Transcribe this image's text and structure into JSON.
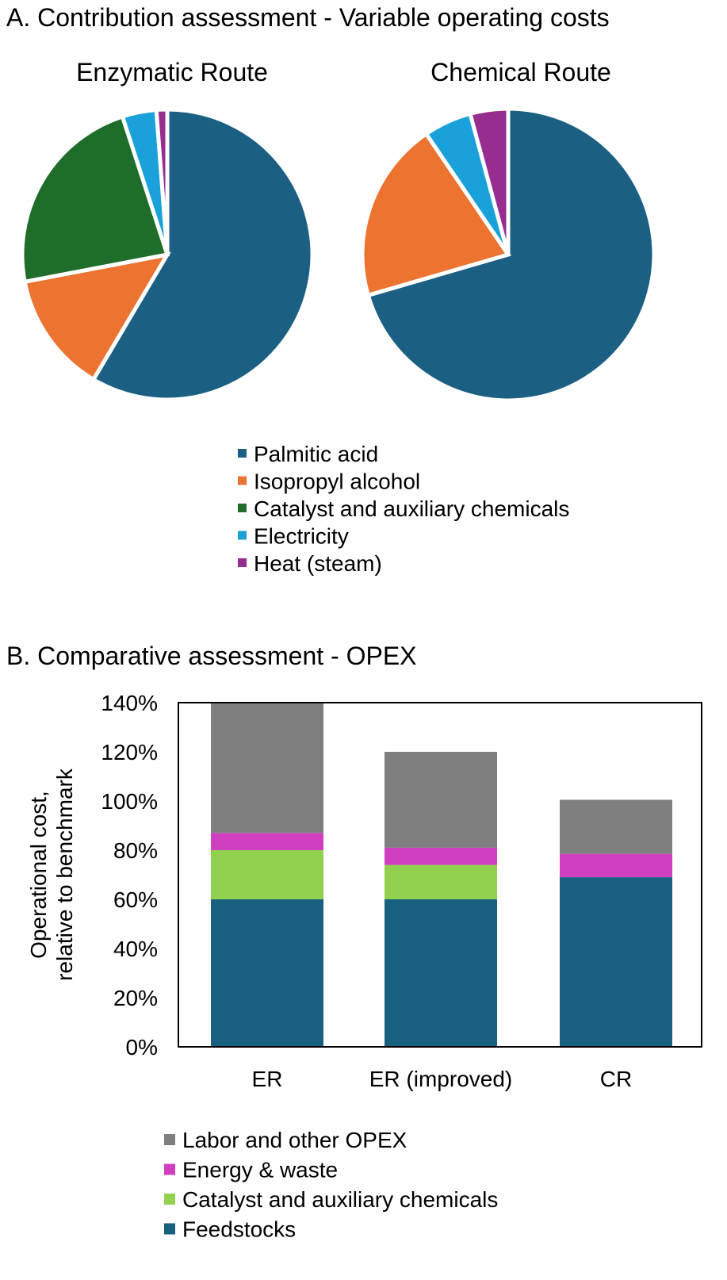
{
  "panel_a": {
    "title": "A. Contribution assessment - Variable operating costs"
  },
  "panel_b": {
    "title": "B. Comparative assessment - OPEX"
  },
  "colors": {
    "palmitic_acid": "#1b5f82",
    "isopropyl_alcohol": "#ec7330",
    "catalyst_chemicals_dark": "#1e6d2b",
    "electricity": "#1aa1d9",
    "heat_steam": "#962d8f",
    "labor_other": "#7f7f7f",
    "energy_waste": "#d03fbf",
    "catalyst_chemicals_light": "#92d050",
    "feedstocks": "#17607f"
  },
  "chart_data": [
    {
      "type": "pie",
      "title": "Enzymatic Route",
      "labels": [
        "Palmitic acid",
        "Isopropyl alcohol",
        "Catalyst and auxiliary chemicals",
        "Electricity",
        "Heat (steam)"
      ],
      "values": [
        58.5,
        13.5,
        23.0,
        3.8,
        1.2
      ],
      "colors": [
        "#1b5f82",
        "#ec7330",
        "#1e6d2b",
        "#1aa1d9",
        "#962d8f"
      ]
    },
    {
      "type": "pie",
      "title": "Chemical Route",
      "labels": [
        "Palmitic acid",
        "Isopropyl alcohol",
        "Catalyst and auxiliary chemicals",
        "Electricity",
        "Heat (steam)"
      ],
      "values": [
        70.5,
        20.0,
        0.0,
        5.3,
        4.2
      ],
      "colors": [
        "#1b5f82",
        "#ec7330",
        "#1e6d2b",
        "#1aa1d9",
        "#962d8f"
      ],
      "legend": [
        "Palmitic acid",
        "Isopropyl alcohol",
        "Catalyst and auxiliary chemicals",
        "Electricity",
        "Heat (steam)"
      ]
    },
    {
      "type": "bar",
      "stacked": true,
      "categories": [
        "ER",
        "ER (improved)",
        "CR"
      ],
      "series": [
        {
          "name": "Feedstocks",
          "values": [
            60,
            60,
            69
          ],
          "color": "#17607f"
        },
        {
          "name": "Catalyst and auxiliary chemicals",
          "values": [
            20,
            14,
            0
          ],
          "color": "#92d050"
        },
        {
          "name": "Energy & waste",
          "values": [
            7,
            7,
            9.5
          ],
          "color": "#d03fbf"
        },
        {
          "name": "Labor and other OPEX",
          "values": [
            53,
            39,
            22
          ],
          "color": "#7f7f7f"
        }
      ],
      "ylabel": "Operational cost, relative to benchmark",
      "ylim": [
        0,
        140
      ],
      "yticks": [
        "0%",
        "20%",
        "40%",
        "60%",
        "80%",
        "100%",
        "120%",
        "140%"
      ],
      "legend_order": [
        "Labor and other OPEX",
        "Energy & waste",
        "Catalyst and auxiliary chemicals",
        "Feedstocks"
      ],
      "grid": false
    }
  ]
}
